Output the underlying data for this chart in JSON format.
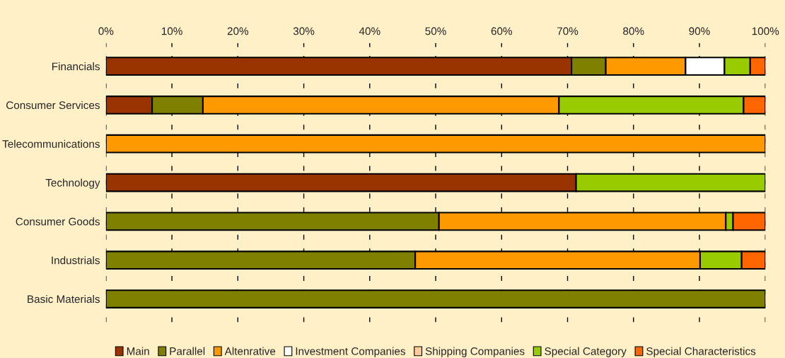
{
  "chart_data": {
    "type": "bar",
    "orientation": "horizontal",
    "stacked": true,
    "categories": [
      "Financials",
      "Consumer Services",
      "Telecommunications",
      "Technology",
      "Consumer Goods",
      "Industrials",
      "Basic Materials"
    ],
    "series": [
      {
        "name": "Main",
        "color": "#993300",
        "values": [
          70.6,
          7.0,
          0,
          71.3,
          0,
          0,
          0
        ]
      },
      {
        "name": "Parallel",
        "color": "#808000",
        "values": [
          5.2,
          7.7,
          0,
          0,
          50.5,
          46.9,
          100
        ]
      },
      {
        "name": "Altenrative",
        "color": "#ff9900",
        "values": [
          12.1,
          54.0,
          100,
          0,
          43.5,
          43.2,
          0
        ]
      },
      {
        "name": "Investment Companies",
        "color": "#ffffff",
        "values": [
          5.9,
          0,
          0,
          0,
          0,
          0,
          0
        ]
      },
      {
        "name": "Shipping Companies",
        "color": "#ffcc99",
        "values": [
          0,
          0,
          0,
          0,
          0,
          0,
          0
        ]
      },
      {
        "name": "Special Category",
        "color": "#99cc00",
        "values": [
          3.9,
          28.0,
          0,
          28.7,
          1.1,
          6.3,
          0
        ]
      },
      {
        "name": "Special Characteristics",
        "color": "#ff6600",
        "values": [
          2.3,
          3.3,
          0,
          0,
          4.9,
          3.6,
          0
        ]
      }
    ],
    "xlim": [
      0,
      100
    ],
    "xticks": [
      {
        "value": 0,
        "label": "0%"
      },
      {
        "value": 10,
        "label": "10%"
      },
      {
        "value": 20,
        "label": "20%"
      },
      {
        "value": 30,
        "label": "30%"
      },
      {
        "value": 40,
        "label": "40%"
      },
      {
        "value": 50,
        "label": "50%"
      },
      {
        "value": 60,
        "label": "60%"
      },
      {
        "value": 70,
        "label": "70%"
      },
      {
        "value": 80,
        "label": "80%"
      },
      {
        "value": 90,
        "label": "90%"
      },
      {
        "value": 100,
        "label": "100%"
      }
    ],
    "grid": "x",
    "line_style": "dashed",
    "legend": "bottom"
  }
}
